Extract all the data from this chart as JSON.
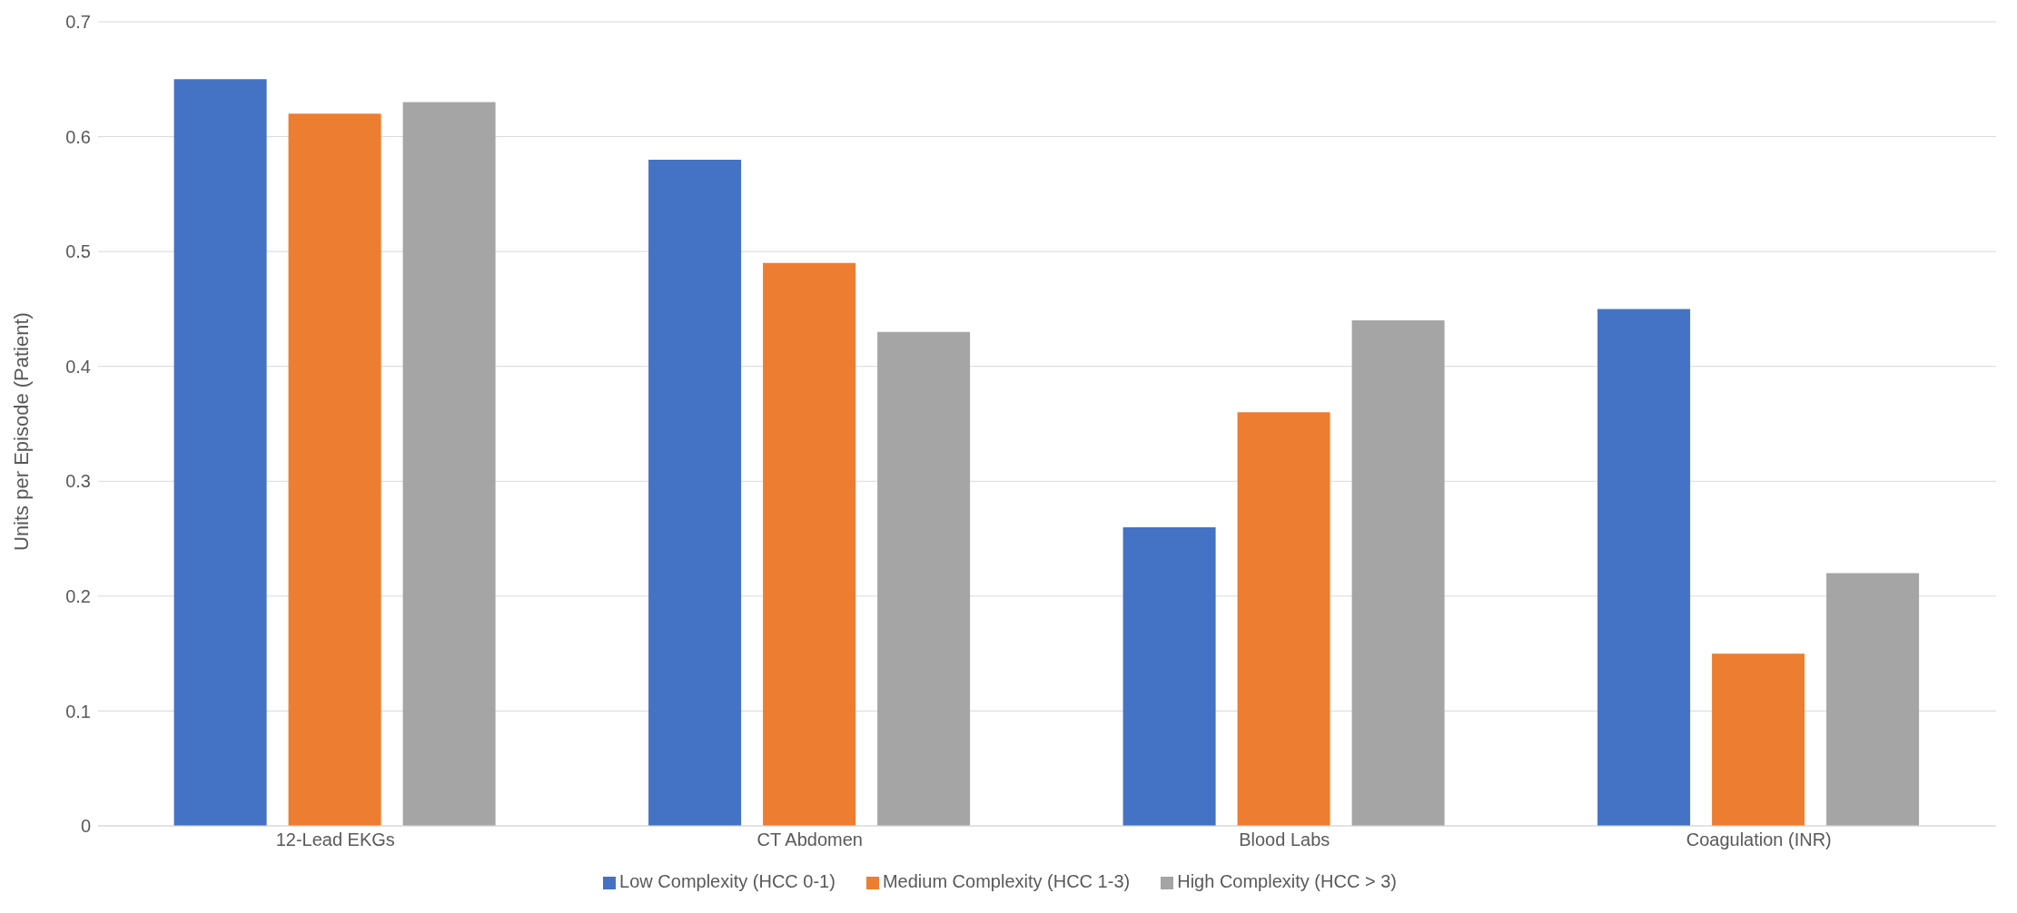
{
  "chart_data": {
    "type": "bar",
    "ylabel": "Units per Episode (Patient)",
    "categories": [
      "12-Lead EKGs",
      "CT Abdomen",
      "Blood Labs",
      "Coagulation (INR)"
    ],
    "series": [
      {
        "name": "Low Complexity (HCC 0-1)",
        "color": "#4472c4",
        "values": [
          0.65,
          0.58,
          0.26,
          0.45
        ]
      },
      {
        "name": "Medium Complexity (HCC 1-3)",
        "color": "#ed7d31",
        "values": [
          0.62,
          0.49,
          0.36,
          0.15
        ]
      },
      {
        "name": "High Complexity (HCC > 3)",
        "color": "#a5a5a5",
        "values": [
          0.63,
          0.43,
          0.44,
          0.22
        ]
      }
    ],
    "ylim": [
      0,
      0.7
    ],
    "yticks": [
      0,
      0.1,
      0.2,
      0.3,
      0.4,
      0.5,
      0.6,
      0.7
    ],
    "grid": "y",
    "legend": "bottom"
  }
}
